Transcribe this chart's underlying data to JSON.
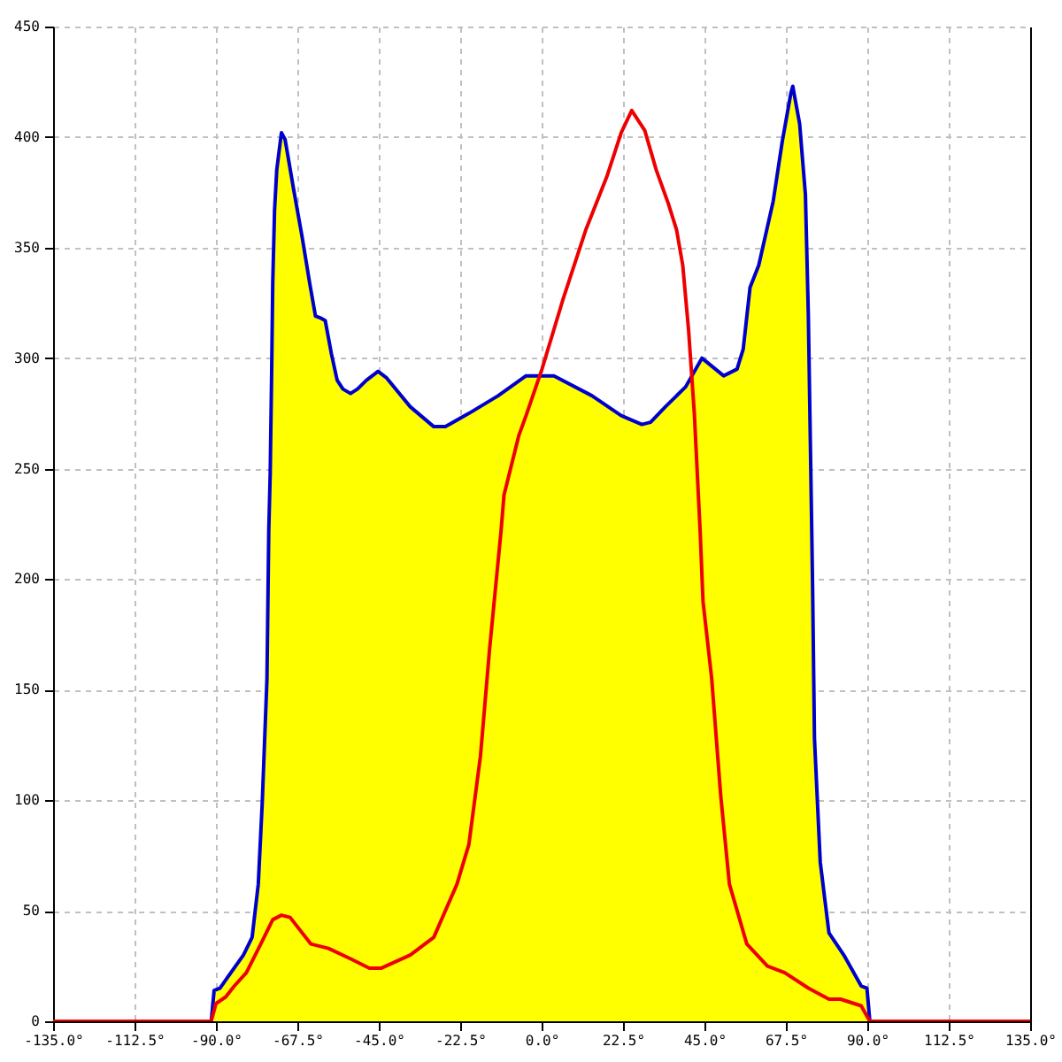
{
  "chart_data": {
    "type": "line",
    "xlim": [
      -135,
      135
    ],
    "xticks": [
      {
        "value": -135,
        "label": "-135.0°"
      },
      {
        "value": -112.5,
        "label": "-112.5°"
      },
      {
        "value": -90,
        "label": "-90.0°"
      },
      {
        "value": -67.5,
        "label": "-67.5°"
      },
      {
        "value": -45,
        "label": "-45.0°"
      },
      {
        "value": -22.5,
        "label": "-22.5°"
      },
      {
        "value": 0,
        "label": "0.0°"
      },
      {
        "value": 22.5,
        "label": "22.5°"
      },
      {
        "value": 45,
        "label": "45.0°"
      },
      {
        "value": 67.5,
        "label": "67.5°"
      },
      {
        "value": 90,
        "label": "90.0°"
      },
      {
        "value": 112.5,
        "label": "112.5°"
      },
      {
        "value": 135,
        "label": "135.0°"
      }
    ],
    "ylim": [
      0,
      450
    ],
    "yticks": [
      0,
      50,
      100,
      150,
      200,
      250,
      300,
      350,
      400,
      450
    ],
    "grid": true,
    "series": [
      {
        "type": "area",
        "color": "#ffff00",
        "x": [
          -90.5,
          -88.9,
          -82.4,
          -80.0,
          -78.3,
          -77.2,
          -75.9,
          -75.4,
          -75.0,
          -74.6,
          -74.3,
          -73.8,
          -73.2,
          -71.9,
          -70.9,
          -68.6,
          -66.2,
          -64.1,
          -62.5,
          -60.9,
          -59.8,
          -58.1,
          -56.5,
          -54.9,
          -52.8,
          -50.9,
          -48.4,
          -45.2,
          -42.8,
          -36.3,
          -29.8,
          -26.6,
          -20.1,
          -12.0,
          -4.3,
          3.4,
          13.9,
          22.0,
          27.7,
          30.1,
          34.2,
          39.8,
          44.3,
          50.3,
          54.0,
          55.7,
          57.6,
          60.0,
          64.0,
          66.5,
          68.9,
          69.4,
          71.3,
          72.9,
          73.7,
          74.6,
          74.9,
          75.4,
          77.0,
          79.4,
          83.5,
          88.3,
          89.9
        ],
        "values": [
          14,
          15,
          30,
          38,
          62,
          99,
          155,
          222,
          248,
          294,
          334,
          367,
          385,
          402,
          399,
          377,
          355,
          334,
          319,
          318,
          317,
          302,
          290,
          286,
          284,
          286,
          290,
          294,
          291,
          278,
          269,
          269,
          275,
          283,
          292,
          292,
          283,
          274,
          270,
          271,
          278,
          287,
          300,
          292,
          295,
          304,
          332,
          342,
          371,
          398,
          420,
          423,
          406,
          374,
          320,
          227,
          195,
          128,
          72,
          40,
          30,
          16,
          15
        ]
      },
      {
        "color": "#0000cc",
        "x": [
          -91.3,
          -90.5,
          -88.9,
          -82.4,
          -80.0,
          -78.3,
          -77.2,
          -75.9,
          -75.4,
          -75.0,
          -74.6,
          -74.3,
          -73.8,
          -73.2,
          -71.9,
          -70.9,
          -68.6,
          -66.2,
          -64.1,
          -62.5,
          -60.9,
          -59.8,
          -58.1,
          -56.5,
          -54.9,
          -52.8,
          -50.9,
          -48.4,
          -45.2,
          -42.8,
          -36.3,
          -29.8,
          -26.6,
          -20.1,
          -12.0,
          -4.3,
          3.4,
          13.9,
          22.0,
          27.7,
          30.1,
          34.2,
          39.8,
          44.3,
          50.3,
          54.0,
          55.7,
          57.6,
          60.0,
          64.0,
          66.5,
          68.9,
          69.4,
          71.3,
          72.9,
          73.7,
          74.6,
          74.9,
          75.4,
          77.0,
          79.4,
          83.5,
          88.3,
          89.9,
          90.7
        ],
        "values": [
          0,
          14,
          15,
          30,
          38,
          62,
          99,
          155,
          222,
          248,
          294,
          334,
          367,
          385,
          402,
          399,
          377,
          355,
          334,
          319,
          318,
          317,
          302,
          290,
          286,
          284,
          286,
          290,
          294,
          291,
          278,
          269,
          269,
          275,
          283,
          292,
          292,
          283,
          274,
          270,
          271,
          278,
          287,
          300,
          292,
          295,
          304,
          332,
          342,
          371,
          398,
          420,
          423,
          406,
          374,
          320,
          227,
          195,
          128,
          72,
          40,
          30,
          16,
          15,
          0
        ]
      },
      {
        "color": "#ee0000",
        "x": [
          -135,
          -91.3,
          -90.0,
          -87.3,
          -84.9,
          -81.6,
          -77.6,
          -74.3,
          -71.9,
          -69.5,
          -63.8,
          -58.9,
          -52.5,
          -47.6,
          -44.4,
          -36.3,
          -29.8,
          -23.4,
          -20.1,
          -16.9,
          -14.4,
          -11.2,
          -10.4,
          -6.3,
          -4.3,
          0.1,
          5.8,
          12.2,
          18.0,
          22.0,
          24.9,
          28.5,
          31.7,
          35.0,
          37.3,
          39.0,
          40.6,
          42.2,
          43.8,
          44.6,
          47.0,
          49.5,
          51.9,
          56.7,
          62.4,
          67.2,
          73.7,
          79.4,
          82.6,
          88.3,
          90.7,
          135
        ],
        "values": [
          0,
          0,
          8,
          11,
          16,
          22,
          35,
          46,
          48,
          47,
          35,
          33,
          28,
          24,
          24,
          30,
          38,
          62,
          80,
          120,
          168,
          222,
          238,
          265,
          274,
          295,
          326,
          358,
          382,
          402,
          412,
          403,
          385,
          370,
          358,
          342,
          313,
          275,
          222,
          190,
          155,
          102,
          62,
          35,
          25,
          22,
          15,
          10,
          10,
          7,
          0,
          0
        ]
      }
    ]
  }
}
